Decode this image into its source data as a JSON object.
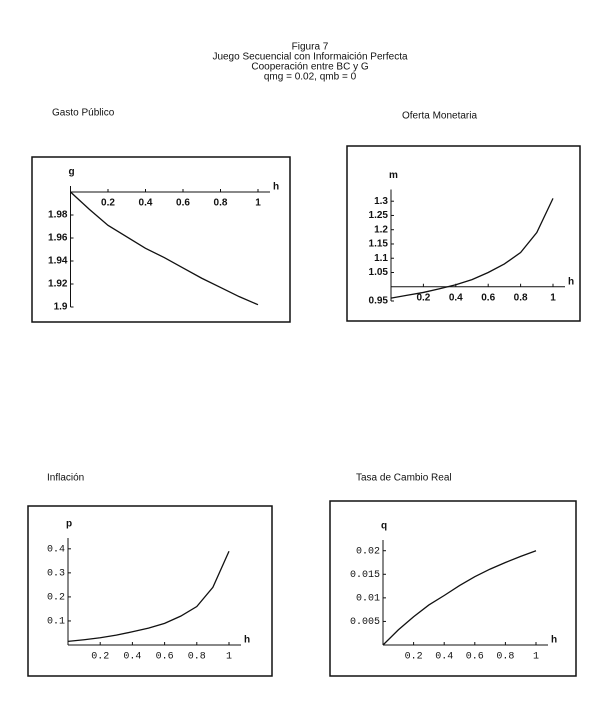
{
  "header": {
    "lines": [
      "Figura 7",
      "Juego Secuencial con Informaición Perfecta",
      "Cooperación entre BC y G",
      "qmg = 0.02,  qmb = 0"
    ]
  },
  "chart_data": [
    {
      "type": "line",
      "title": "Gasto Público",
      "xlabel": "h",
      "ylabel": "g",
      "color": "#111",
      "x": [
        0,
        0.1,
        0.2,
        0.3,
        0.4,
        0.5,
        0.6,
        0.7,
        0.8,
        0.9,
        1
      ],
      "values": [
        2.0,
        1.985,
        1.971,
        1.961,
        1.951,
        1.943,
        1.934,
        1.925,
        1.917,
        1.909,
        1.902
      ],
      "xlim": [
        0,
        1
      ],
      "ylim": [
        1.9,
        2.0
      ],
      "x_axis_crossing": 2.0,
      "xticks": [
        0.2,
        0.4,
        0.6,
        0.8,
        1
      ],
      "yticks": [
        1.9,
        1.92,
        1.94,
        1.96,
        1.98
      ]
    },
    {
      "type": "line",
      "title": "Oferta Monetaria",
      "xlabel": "h",
      "ylabel": "m",
      "color": "#111",
      "x": [
        0,
        0.1,
        0.2,
        0.3,
        0.4,
        0.5,
        0.6,
        0.7,
        0.8,
        0.9,
        1
      ],
      "values": [
        0.96,
        0.97,
        0.98,
        0.993,
        1.007,
        1.025,
        1.05,
        1.08,
        1.12,
        1.19,
        1.31
      ],
      "xlim": [
        0,
        1
      ],
      "ylim": [
        0.95,
        1.32
      ],
      "x_axis_crossing": 1,
      "xticks": [
        0.2,
        0.4,
        0.6,
        0.8,
        1
      ],
      "yticks": [
        0.95,
        1.05,
        1.1,
        1.15,
        1.2,
        1.25,
        1.3
      ]
    },
    {
      "type": "line",
      "title": "Inflación",
      "xlabel": "h",
      "ylabel": "p",
      "color": "#111",
      "x": [
        0,
        0.1,
        0.2,
        0.3,
        0.4,
        0.5,
        0.6,
        0.7,
        0.8,
        0.9,
        1
      ],
      "values": [
        0.015,
        0.022,
        0.03,
        0.041,
        0.055,
        0.07,
        0.09,
        0.12,
        0.16,
        0.24,
        0.39
      ],
      "xlim": [
        0,
        1
      ],
      "ylim": [
        0,
        0.42
      ],
      "x_axis_crossing": 0,
      "xticks": [
        0.2,
        0.4,
        0.6,
        0.8,
        1
      ],
      "yticks": [
        0.1,
        0.2,
        0.3,
        0.4
      ]
    },
    {
      "type": "line",
      "title": "Tasa de Cambio Real",
      "xlabel": "h",
      "ylabel": "q",
      "color": "#111",
      "x": [
        0,
        0.1,
        0.2,
        0.3,
        0.4,
        0.5,
        0.6,
        0.7,
        0.8,
        0.9,
        1
      ],
      "values": [
        0,
        0.0032,
        0.006,
        0.0085,
        0.0105,
        0.0126,
        0.0145,
        0.0161,
        0.0175,
        0.0188,
        0.02
      ],
      "xlim": [
        0,
        1
      ],
      "ylim": [
        0,
        0.021
      ],
      "x_axis_crossing": 0,
      "xticks": [
        0.2,
        0.4,
        0.6,
        0.8,
        1
      ],
      "yticks": [
        0.005,
        0.01,
        0.015,
        0.02
      ]
    }
  ]
}
